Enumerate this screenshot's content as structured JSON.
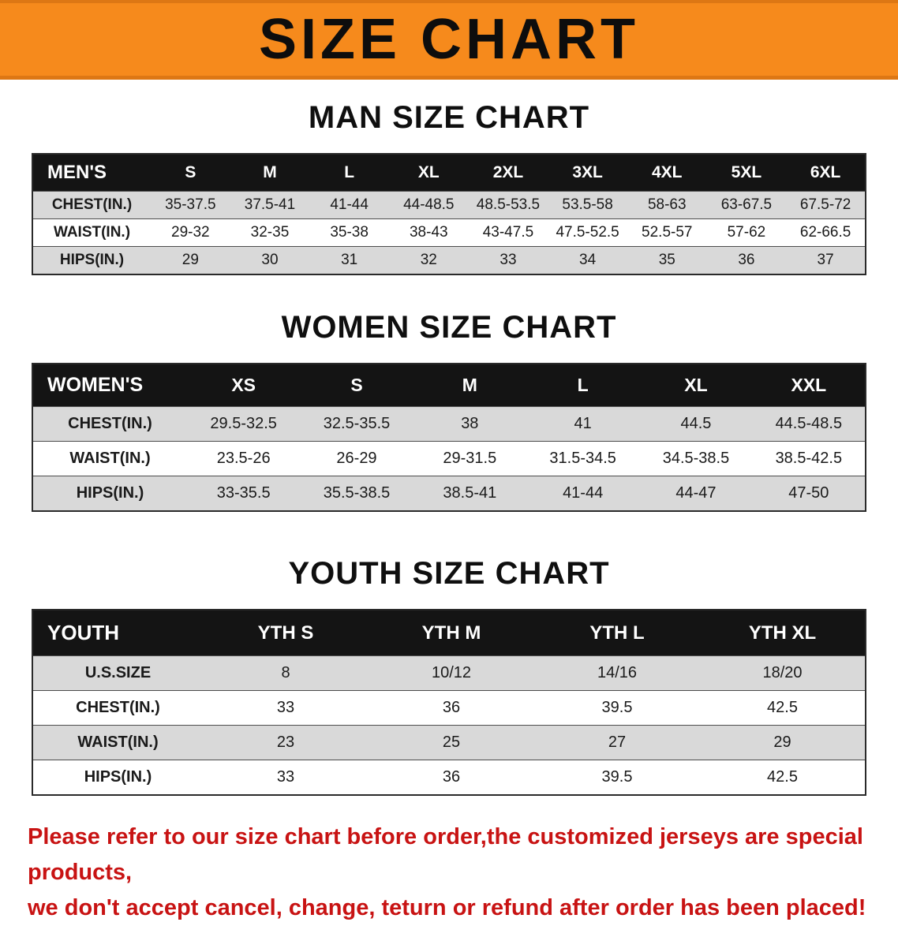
{
  "banner": {
    "title": "SIZE CHART"
  },
  "colors": {
    "banner_bg": "#f68a1c",
    "table_header_bg": "#141414",
    "row_alt_bg": "#d9d9d9",
    "notice_text": "#c81313"
  },
  "men": {
    "heading": "MAN SIZE CHART",
    "header": [
      "MEN'S",
      "S",
      "M",
      "L",
      "XL",
      "2XL",
      "3XL",
      "4XL",
      "5XL",
      "6XL"
    ],
    "rows": [
      [
        "CHEST(IN.)",
        "35-37.5",
        "37.5-41",
        "41-44",
        "44-48.5",
        "48.5-53.5",
        "53.5-58",
        "58-63",
        "63-67.5",
        "67.5-72"
      ],
      [
        "WAIST(IN.)",
        "29-32",
        "32-35",
        "35-38",
        "38-43",
        "43-47.5",
        "47.5-52.5",
        "52.5-57",
        "57-62",
        "62-66.5"
      ],
      [
        "HIPS(IN.)",
        "29",
        "30",
        "31",
        "32",
        "33",
        "34",
        "35",
        "36",
        "37"
      ]
    ]
  },
  "women": {
    "heading": "WOMEN SIZE CHART",
    "header": [
      "WOMEN'S",
      "XS",
      "S",
      "M",
      "L",
      "XL",
      "XXL"
    ],
    "rows": [
      [
        "CHEST(IN.)",
        "29.5-32.5",
        "32.5-35.5",
        "38",
        "41",
        "44.5",
        "44.5-48.5"
      ],
      [
        "WAIST(IN.)",
        "23.5-26",
        "26-29",
        "29-31.5",
        "31.5-34.5",
        "34.5-38.5",
        "38.5-42.5"
      ],
      [
        "HIPS(IN.)",
        "33-35.5",
        "35.5-38.5",
        "38.5-41",
        "41-44",
        "44-47",
        "47-50"
      ]
    ]
  },
  "youth": {
    "heading": "YOUTH SIZE CHART",
    "header": [
      "YOUTH",
      "YTH S",
      "YTH M",
      "YTH L",
      "YTH XL"
    ],
    "rows": [
      [
        "U.S.SIZE",
        "8",
        "10/12",
        "14/16",
        "18/20"
      ],
      [
        "CHEST(IN.)",
        "33",
        "36",
        "39.5",
        "42.5"
      ],
      [
        "WAIST(IN.)",
        "23",
        "25",
        "27",
        "29"
      ],
      [
        "HIPS(IN.)",
        "33",
        "36",
        "39.5",
        "42.5"
      ]
    ]
  },
  "notice": {
    "line1": "Please refer to our size chart before order,the customized jerseys are special products,",
    "line2": "we don't accept cancel, change, teturn or refund after order has been placed!"
  }
}
